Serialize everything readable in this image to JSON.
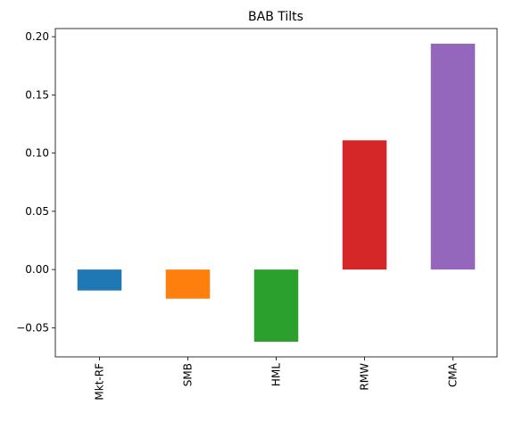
{
  "chart_data": {
    "type": "bar",
    "title": "BAB Tilts",
    "xlabel": "",
    "ylabel": "",
    "categories": [
      "Mkt-RF",
      "SMB",
      "HML",
      "RMW",
      "CMA"
    ],
    "values": [
      -0.018,
      -0.025,
      -0.062,
      0.111,
      0.194
    ],
    "colors": [
      "#1f77b4",
      "#ff7f0e",
      "#2ca02c",
      "#d62728",
      "#9467bd"
    ],
    "ylim": [
      -0.075,
      0.207
    ],
    "yticks": [
      -0.05,
      0.0,
      0.05,
      0.1,
      0.15,
      0.2
    ],
    "ytick_labels": [
      "−0.05",
      "0.00",
      "0.05",
      "0.10",
      "0.15",
      "0.20"
    ],
    "grid": false,
    "legend": "none",
    "x_tick_rotation": "vertical"
  }
}
